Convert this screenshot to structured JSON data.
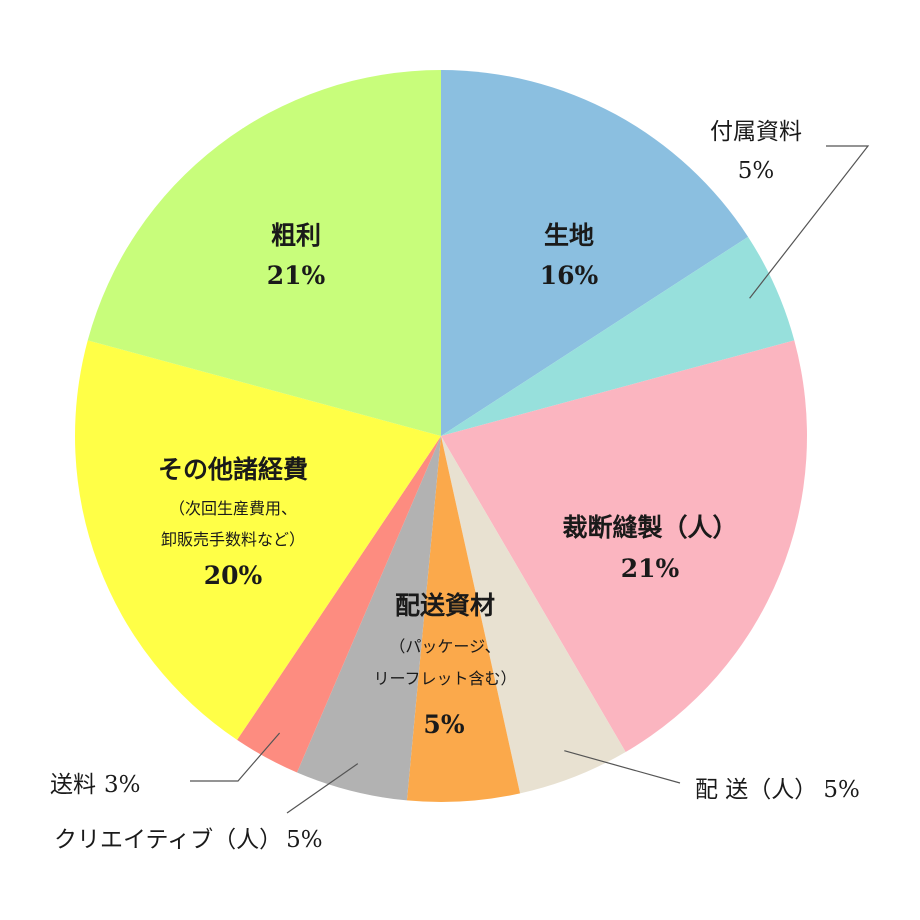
{
  "chart_data": {
    "type": "pie",
    "start_angle_deg": 0,
    "direction": "clockwise",
    "slices": [
      {
        "label": "生地",
        "value": 16,
        "pct_label": "16%",
        "color": "#8bbfe0"
      },
      {
        "label": "付属資料",
        "value": 5,
        "pct_label": "5%",
        "color": "#97e0dc"
      },
      {
        "label": "裁断縫製（人）",
        "value": 21,
        "pct_label": "21%",
        "color": "#fbb5c0"
      },
      {
        "label": "配 送（人）",
        "value": 5,
        "pct_label": "5%",
        "color": "#e8e1d1"
      },
      {
        "label": "配送資材",
        "sub_lines": [
          "（パッケージ、",
          "リーフレット含む）"
        ],
        "value": 5,
        "pct_label": "5%",
        "color": "#fba94b"
      },
      {
        "label": "クリエイティブ（人）",
        "value": 5,
        "pct_label": "5%",
        "color": "#b2b2b2"
      },
      {
        "label": "送料",
        "value": 3,
        "pct_label": "3%",
        "color": "#fd8c80"
      },
      {
        "label": "その他諸経費",
        "sub_lines": [
          "（次回生産費用、",
          "卸販売手数料など）"
        ],
        "value": 20,
        "pct_label": "20%",
        "color": "#ffff47"
      },
      {
        "label": "粗利",
        "value": 21,
        "pct_label": "21%",
        "color": "#c8fd7b"
      }
    ]
  }
}
